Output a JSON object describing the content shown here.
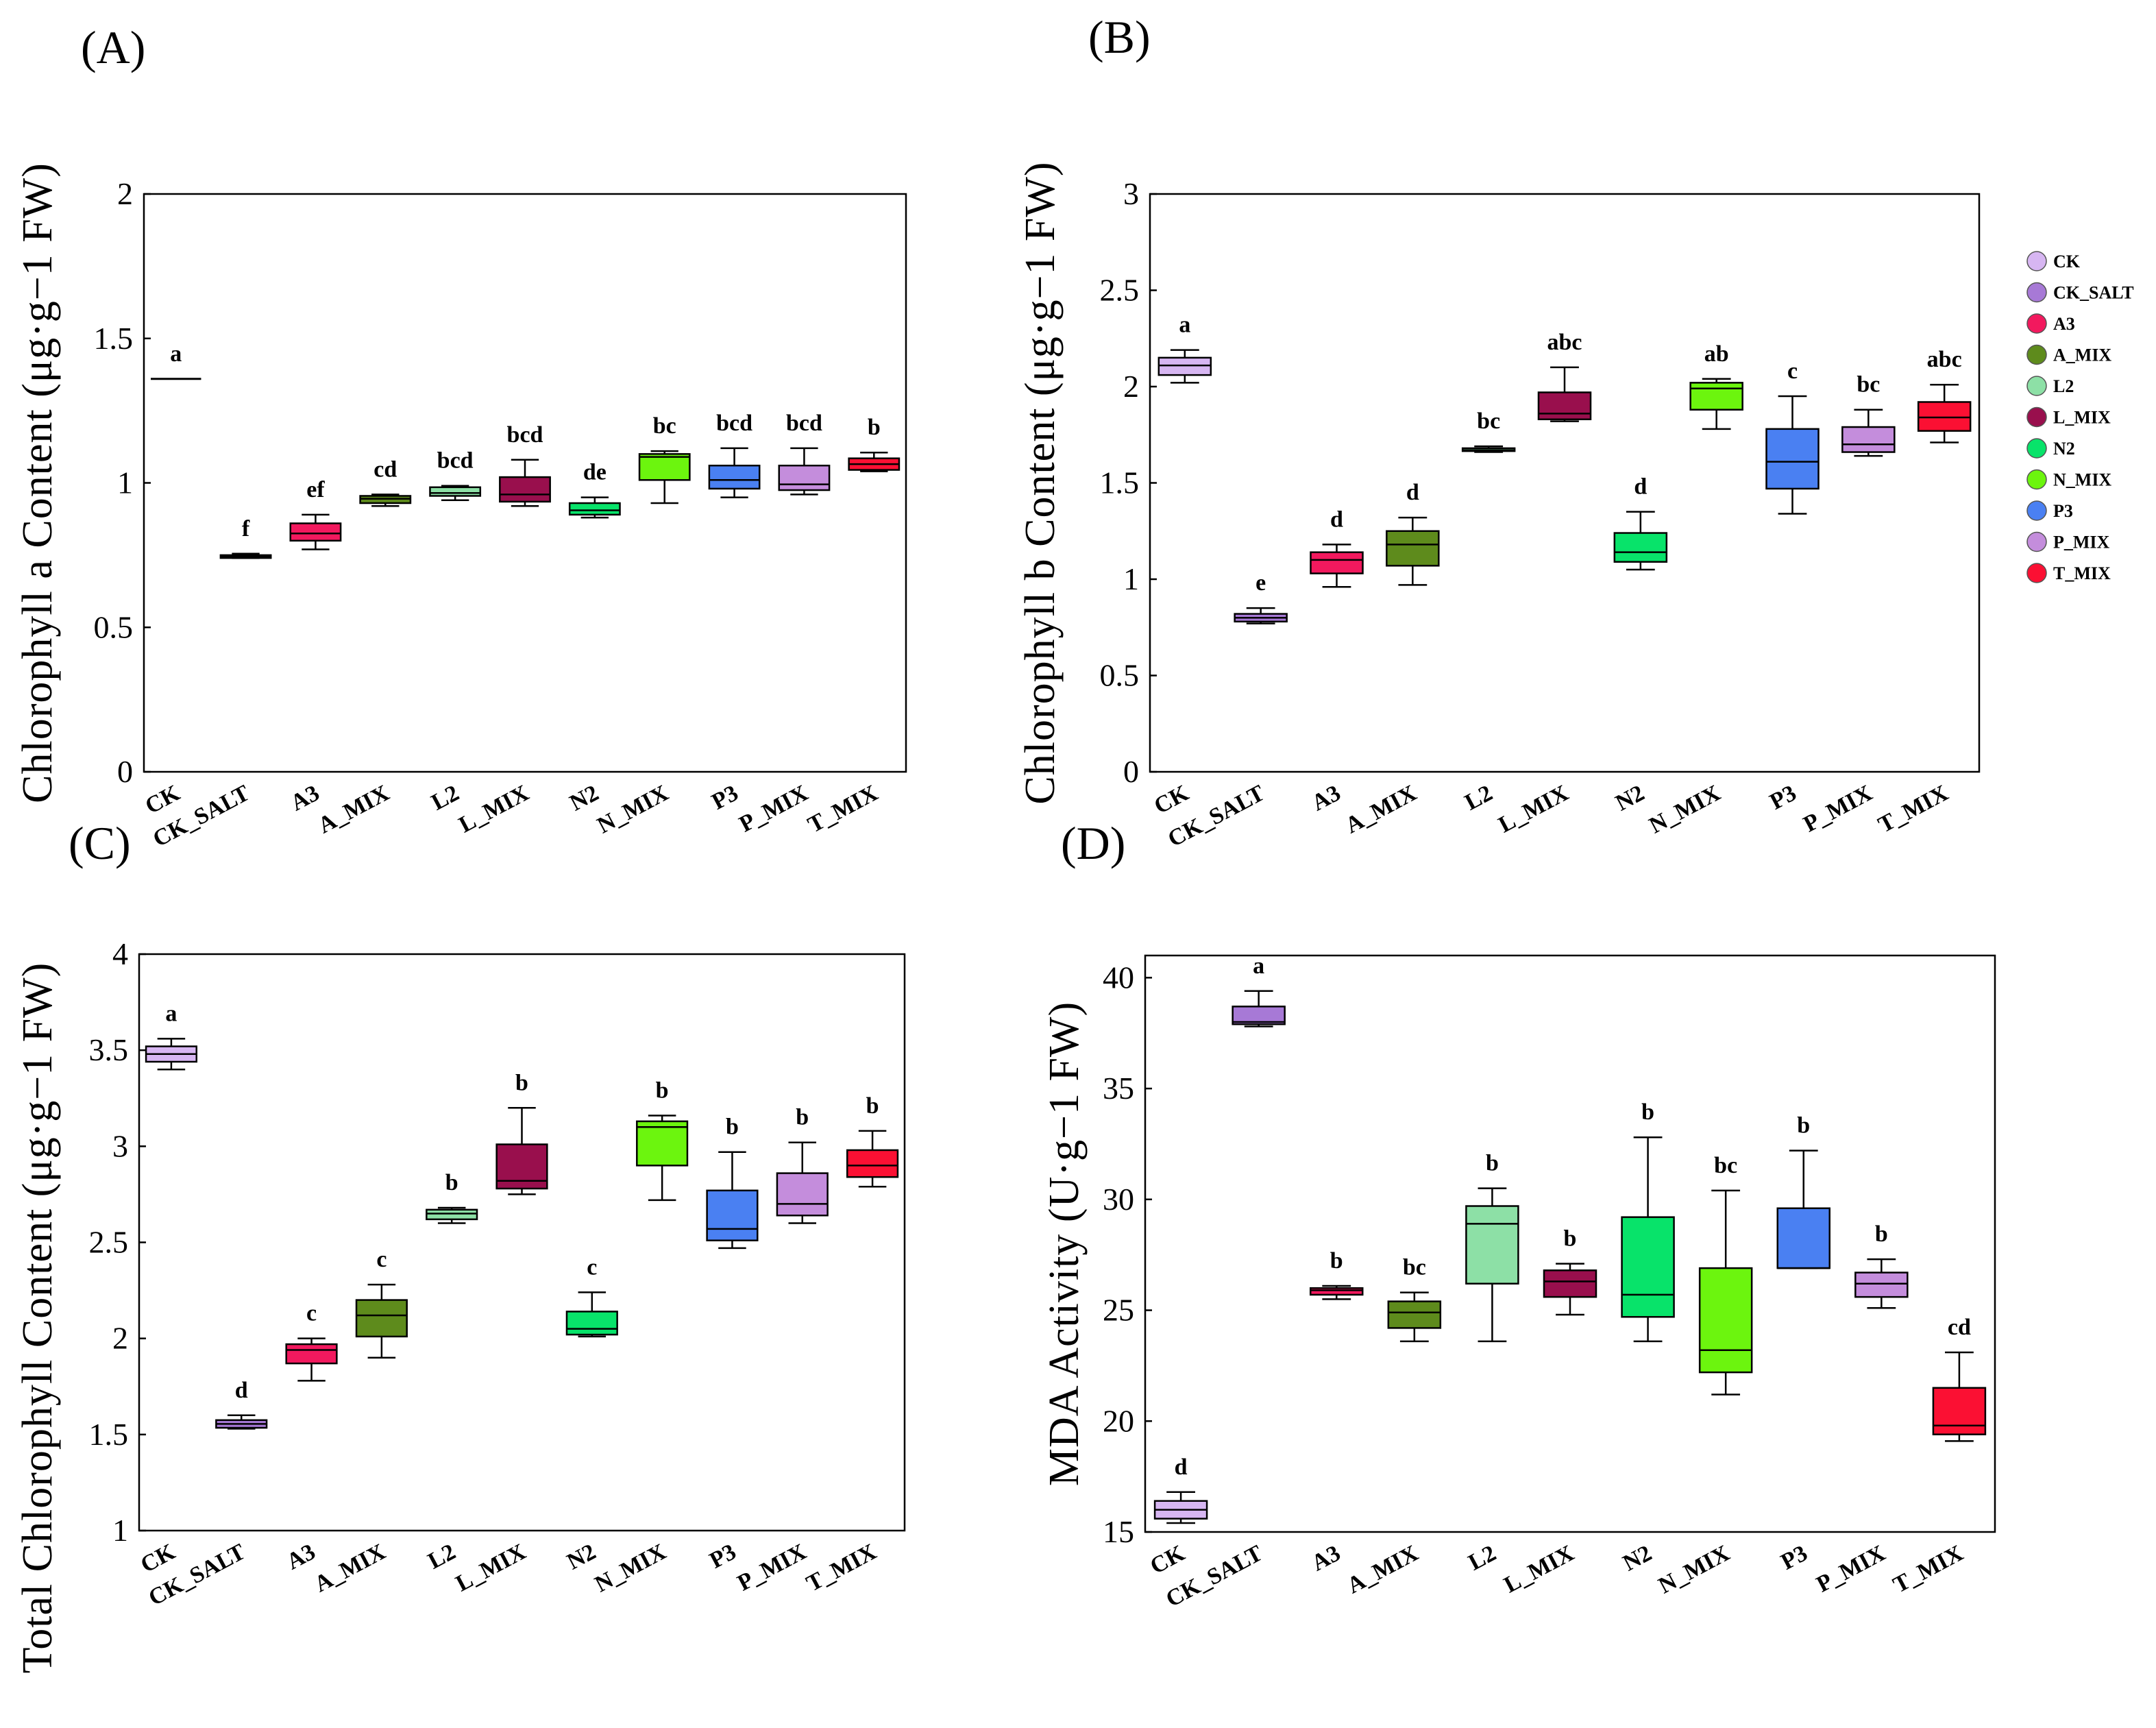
{
  "legend": {
    "items": [
      {
        "label": "CK",
        "color": "#d7b6f2"
      },
      {
        "label": "CK_SALT",
        "color": "#a779d6"
      },
      {
        "label": "A3",
        "color": "#f2195e"
      },
      {
        "label": "A_MIX",
        "color": "#5e8b1c"
      },
      {
        "label": "L2",
        "color": "#8de0a6"
      },
      {
        "label": "L_MIX",
        "color": "#990f4d"
      },
      {
        "label": "N2",
        "color": "#08e36a"
      },
      {
        "label": "N_MIX",
        "color": "#6cf50e"
      },
      {
        "label": "P3",
        "color": "#4a80f2"
      },
      {
        "label": "P_MIX",
        "color": "#c48ddc"
      },
      {
        "label": "T_MIX",
        "color": "#fb1033"
      }
    ]
  },
  "chart_data": [
    {
      "type": "box",
      "panel": "(A)",
      "ylabel": "Chlorophyll a Content (μg·g−1 FW)",
      "ylim": [
        0,
        2
      ],
      "yticks": [
        "0",
        "0.5",
        "1",
        "1.5",
        "2"
      ],
      "ytick_values": [
        0,
        0.5,
        1,
        1.5,
        2
      ],
      "categories": [
        "CK",
        "CK_SALT",
        "A3",
        "A_MIX",
        "L2",
        "L_MIX",
        "N2",
        "N_MIX",
        "P3",
        "P_MIX",
        "T_MIX"
      ],
      "boxes": [
        {
          "min": 1.36,
          "q1": 1.36,
          "median": 1.36,
          "q3": 1.36,
          "max": 1.36
        },
        {
          "min": 0.74,
          "q1": 0.74,
          "median": 0.745,
          "q3": 0.75,
          "max": 0.755
        },
        {
          "min": 0.77,
          "q1": 0.8,
          "median": 0.825,
          "q3": 0.86,
          "max": 0.89
        },
        {
          "min": 0.92,
          "q1": 0.93,
          "median": 0.945,
          "q3": 0.955,
          "max": 0.96
        },
        {
          "min": 0.94,
          "q1": 0.955,
          "median": 0.965,
          "q3": 0.985,
          "max": 0.99
        },
        {
          "min": 0.92,
          "q1": 0.935,
          "median": 0.96,
          "q3": 1.02,
          "max": 1.08
        },
        {
          "min": 0.88,
          "q1": 0.89,
          "median": 0.905,
          "q3": 0.93,
          "max": 0.95
        },
        {
          "min": 0.93,
          "q1": 1.01,
          "median": 1.09,
          "q3": 1.1,
          "max": 1.11
        },
        {
          "min": 0.95,
          "q1": 0.98,
          "median": 1.01,
          "q3": 1.06,
          "max": 1.12
        },
        {
          "min": 0.96,
          "q1": 0.975,
          "median": 0.995,
          "q3": 1.06,
          "max": 1.12
        },
        {
          "min": 1.04,
          "q1": 1.045,
          "median": 1.065,
          "q3": 1.085,
          "max": 1.105
        }
      ],
      "letters": [
        "a",
        "f",
        "ef",
        "cd",
        "bcd",
        "bcd",
        "de",
        "bc",
        "bcd",
        "bcd",
        "b"
      ]
    },
    {
      "type": "box",
      "panel": "(B)",
      "ylabel": "Chlorophyll b Content (μg·g−1 FW)",
      "ylim": [
        0,
        3
      ],
      "yticks": [
        "0",
        "0.5",
        "1",
        "1.5",
        "2",
        "2.5",
        "3"
      ],
      "ytick_values": [
        0,
        0.5,
        1,
        1.5,
        2,
        2.5,
        3
      ],
      "categories": [
        "CK",
        "CK_SALT",
        "A3",
        "A_MIX",
        "L2",
        "L_MIX",
        "N2",
        "N_MIX",
        "P3",
        "P_MIX",
        "T_MIX"
      ],
      "boxes": [
        {
          "min": 2.02,
          "q1": 2.06,
          "median": 2.11,
          "q3": 2.15,
          "max": 2.19
        },
        {
          "min": 0.77,
          "q1": 0.78,
          "median": 0.8,
          "q3": 0.82,
          "max": 0.85
        },
        {
          "min": 0.96,
          "q1": 1.03,
          "median": 1.1,
          "q3": 1.14,
          "max": 1.18
        },
        {
          "min": 0.97,
          "q1": 1.07,
          "median": 1.18,
          "q3": 1.25,
          "max": 1.32
        },
        {
          "min": 1.66,
          "q1": 1.665,
          "median": 1.67,
          "q3": 1.68,
          "max": 1.69
        },
        {
          "min": 1.82,
          "q1": 1.83,
          "median": 1.86,
          "q3": 1.97,
          "max": 2.1
        },
        {
          "min": 1.05,
          "q1": 1.09,
          "median": 1.14,
          "q3": 1.24,
          "max": 1.35
        },
        {
          "min": 1.78,
          "q1": 1.88,
          "median": 1.99,
          "q3": 2.02,
          "max": 2.04
        },
        {
          "min": 1.34,
          "q1": 1.47,
          "median": 1.61,
          "q3": 1.78,
          "max": 1.95
        },
        {
          "min": 1.64,
          "q1": 1.66,
          "median": 1.7,
          "q3": 1.79,
          "max": 1.88
        },
        {
          "min": 1.71,
          "q1": 1.77,
          "median": 1.84,
          "q3": 1.92,
          "max": 2.01
        }
      ],
      "letters": [
        "a",
        "e",
        "d",
        "d",
        "bc",
        "abc",
        "d",
        "ab",
        "c",
        "bc",
        "abc"
      ]
    },
    {
      "type": "box",
      "panel": "(C)",
      "ylabel": "Total Chlorophyll Content (μg·g−1 FW)",
      "ylim": [
        1,
        4
      ],
      "yticks": [
        "1",
        "1.5",
        "2",
        "2.5",
        "3",
        "3.5",
        "4"
      ],
      "ytick_values": [
        1,
        1.5,
        2,
        2.5,
        3,
        3.5,
        4
      ],
      "categories": [
        "CK",
        "CK_SALT",
        "A3",
        "A_MIX",
        "L2",
        "L_MIX",
        "N2",
        "N_MIX",
        "P3",
        "P_MIX",
        "T_MIX"
      ],
      "boxes": [
        {
          "min": 3.4,
          "q1": 3.44,
          "median": 3.48,
          "q3": 3.52,
          "max": 3.56
        },
        {
          "min": 1.53,
          "q1": 1.535,
          "median": 1.555,
          "q3": 1.575,
          "max": 1.6
        },
        {
          "min": 1.78,
          "q1": 1.87,
          "median": 1.94,
          "q3": 1.97,
          "max": 2.0
        },
        {
          "min": 1.9,
          "q1": 2.01,
          "median": 2.12,
          "q3": 2.2,
          "max": 2.28
        },
        {
          "min": 2.6,
          "q1": 2.62,
          "median": 2.65,
          "q3": 2.67,
          "max": 2.68
        },
        {
          "min": 2.75,
          "q1": 2.78,
          "median": 2.82,
          "q3": 3.01,
          "max": 3.2
        },
        {
          "min": 2.01,
          "q1": 2.02,
          "median": 2.05,
          "q3": 2.14,
          "max": 2.24
        },
        {
          "min": 2.72,
          "q1": 2.9,
          "median": 3.1,
          "q3": 3.13,
          "max": 3.16
        },
        {
          "min": 2.47,
          "q1": 2.51,
          "median": 2.57,
          "q3": 2.77,
          "max": 2.97
        },
        {
          "min": 2.6,
          "q1": 2.64,
          "median": 2.7,
          "q3": 2.86,
          "max": 3.02
        },
        {
          "min": 2.79,
          "q1": 2.84,
          "median": 2.9,
          "q3": 2.98,
          "max": 3.08
        }
      ],
      "letters": [
        "a",
        "d",
        "c",
        "c",
        "b",
        "b",
        "c",
        "b",
        "b",
        "b",
        "b"
      ]
    },
    {
      "type": "box",
      "panel": "(D)",
      "ylabel": "MDA Activity (U·g−1 FW)",
      "ylim": [
        15,
        41
      ],
      "yticks": [
        "15",
        "20",
        "25",
        "30",
        "35",
        "40"
      ],
      "ytick_values": [
        15,
        20,
        25,
        30,
        35,
        40
      ],
      "categories": [
        "CK",
        "CK_SALT",
        "A3",
        "A_MIX",
        "L2",
        "L_MIX",
        "N2",
        "N_MIX",
        "P3",
        "P_MIX",
        "T_MIX"
      ],
      "boxes": [
        {
          "min": 15.4,
          "q1": 15.6,
          "median": 16.0,
          "q3": 16.4,
          "max": 16.8
        },
        {
          "min": 37.8,
          "q1": 37.9,
          "median": 38.0,
          "q3": 38.7,
          "max": 39.4
        },
        {
          "min": 25.5,
          "q1": 25.7,
          "median": 25.9,
          "q3": 26.0,
          "max": 26.1
        },
        {
          "min": 23.6,
          "q1": 24.2,
          "median": 24.9,
          "q3": 25.4,
          "max": 25.8
        },
        {
          "min": 23.6,
          "q1": 26.2,
          "median": 28.9,
          "q3": 29.7,
          "max": 30.5
        },
        {
          "min": 24.8,
          "q1": 25.6,
          "median": 26.3,
          "q3": 26.8,
          "max": 27.1
        },
        {
          "min": 23.6,
          "q1": 24.7,
          "median": 25.7,
          "q3": 29.2,
          "max": 32.8
        },
        {
          "min": 21.2,
          "q1": 22.2,
          "median": 23.2,
          "q3": 26.9,
          "max": 30.4
        },
        {
          "min": 26.9,
          "q1": 26.9,
          "median": 26.9,
          "q3": 29.6,
          "max": 32.2
        },
        {
          "min": 25.1,
          "q1": 25.6,
          "median": 26.2,
          "q3": 26.7,
          "max": 27.3
        },
        {
          "min": 19.1,
          "q1": 19.4,
          "median": 19.8,
          "q3": 21.5,
          "max": 23.1
        }
      ],
      "letters": [
        "d",
        "a",
        "b",
        "bc",
        "b",
        "b",
        "b",
        "bc",
        "b",
        "b",
        "cd"
      ]
    }
  ]
}
